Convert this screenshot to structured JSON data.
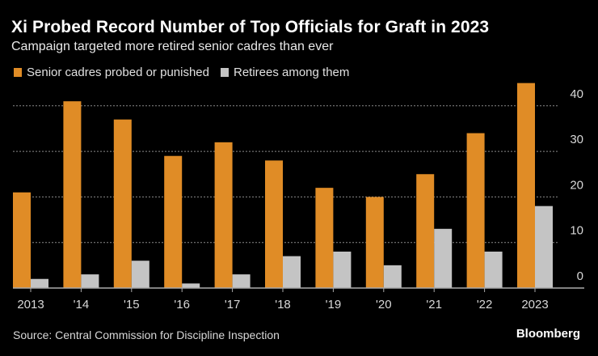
{
  "chart_data": {
    "type": "bar",
    "title": "Xi Probed Record Number of Top Officials for Graft in 2023",
    "subtitle": "Campaign targeted more retired senior cadres than ever",
    "categories": [
      "2013",
      "'14",
      "'15",
      "'16",
      "'17",
      "'18",
      "'19",
      "'20",
      "'21",
      "'22",
      "2023"
    ],
    "series": [
      {
        "name": "Senior cadres probed or punished",
        "color": "#e08c26",
        "values": [
          21,
          41,
          37,
          29,
          32,
          28,
          22,
          20,
          25,
          34,
          45
        ]
      },
      {
        "name": "Retirees among them",
        "color": "#c4c4c4",
        "values": [
          2,
          3,
          6,
          1,
          3,
          7,
          8,
          5,
          13,
          8,
          18
        ]
      }
    ],
    "xlabel": "",
    "ylabel": "",
    "ylim": [
      0,
      45
    ],
    "yticks": [
      0,
      10,
      20,
      30,
      40
    ],
    "ytick_labels": [
      "0",
      "10",
      "20",
      "30",
      "40"
    ],
    "grid": true,
    "y_axis_position": "right",
    "legend_position": "top-left",
    "source": "Source: Central Commission for Discipline Inspection",
    "brand": "Bloomberg"
  }
}
